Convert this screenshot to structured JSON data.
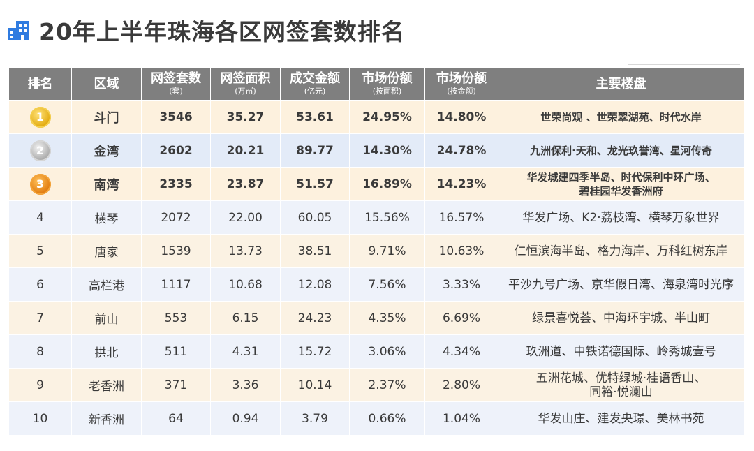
{
  "page": {
    "title": "20年上半年珠海各区网签套数排名",
    "logo_icon": "building-icon",
    "accent_color": "#2f7be0"
  },
  "table": {
    "headers": [
      {
        "label": "排名",
        "sub": ""
      },
      {
        "label": "区域",
        "sub": ""
      },
      {
        "label": "网签套数",
        "sub": "(套)"
      },
      {
        "label": "网签面积",
        "sub": "(万㎡)"
      },
      {
        "label": "成交金额",
        "sub": "(亿元)"
      },
      {
        "label": "市场份额",
        "sub": "(按面积)"
      },
      {
        "label": "市场份额",
        "sub": "(按金额)"
      },
      {
        "label": "主要楼盘",
        "sub": ""
      }
    ],
    "rows": [
      {
        "rank": "1",
        "medal": "gold-medal-icon",
        "district": "斗门",
        "units": "3546",
        "area": "35.27",
        "amount": "53.61",
        "share_area": "24.95%",
        "share_amount": "14.80%",
        "projects": [
          "世荣尚观 、世荣翠湖苑、时代水岸"
        ]
      },
      {
        "rank": "2",
        "medal": "silver-medal-icon",
        "district": "金湾",
        "units": "2602",
        "area": "20.21",
        "amount": "89.77",
        "share_area": "14.30%",
        "share_amount": "24.78%",
        "projects": [
          "九洲保利·天和、龙光玖誉湾、星河传奇"
        ]
      },
      {
        "rank": "3",
        "medal": "bronze-medal-icon",
        "district": "南湾",
        "units": "2335",
        "area": "23.87",
        "amount": "51.57",
        "share_area": "16.89%",
        "share_amount": "14.23%",
        "projects": [
          "华发城建四季半岛、时代保利中环广场、",
          "碧桂园华发香洲府"
        ]
      },
      {
        "rank": "4",
        "district": "横琴",
        "units": "2072",
        "area": "22.00",
        "amount": "60.05",
        "share_area": "15.56%",
        "share_amount": "16.57%",
        "projects": [
          "华发广场、K2·荔枝湾、横琴万象世界"
        ]
      },
      {
        "rank": "5",
        "district": "唐家",
        "units": "1539",
        "area": "13.73",
        "amount": "38.51",
        "share_area": "9.71%",
        "share_amount": "10.63%",
        "projects": [
          "仁恒滨海半岛、格力海岸、万科红树东岸"
        ]
      },
      {
        "rank": "6",
        "district": "高栏港",
        "units": "1117",
        "area": "10.68",
        "amount": "12.08",
        "share_area": "7.56%",
        "share_amount": "3.33%",
        "projects": [
          "平沙九号广场、京华假日湾、海泉湾时光序"
        ]
      },
      {
        "rank": "7",
        "district": "前山",
        "units": "553",
        "area": "6.15",
        "amount": "24.23",
        "share_area": "4.35%",
        "share_amount": "6.69%",
        "projects": [
          "绿景喜悦荟、中海环宇城、半山町"
        ]
      },
      {
        "rank": "8",
        "district": "拱北",
        "units": "511",
        "area": "4.31",
        "amount": "15.72",
        "share_area": "3.06%",
        "share_amount": "4.34%",
        "projects": [
          "玖洲道、中铁诺德国际、岭秀城壹号"
        ]
      },
      {
        "rank": "9",
        "district": "老香洲",
        "units": "371",
        "area": "3.36",
        "amount": "10.14",
        "share_area": "2.37%",
        "share_amount": "2.80%",
        "projects": [
          "五洲花城、优特绿城·桂语香山、",
          "同裕·悦澜山"
        ]
      },
      {
        "rank": "10",
        "district": "新香洲",
        "units": "64",
        "area": "0.94",
        "amount": "3.79",
        "share_area": "0.66%",
        "share_amount": "1.04%",
        "projects": [
          "华发山庄、建发央璟、美林书苑"
        ]
      }
    ]
  }
}
